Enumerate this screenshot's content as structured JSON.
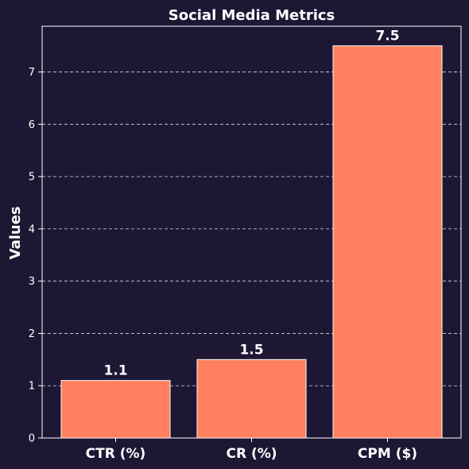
{
  "colors": {
    "background": "#1e1734",
    "bar_fill": "#ff7f5e",
    "bar_edge": "#ffffff",
    "grid": "#d8d8e0",
    "text": "#ffffff"
  },
  "chart_data": {
    "type": "bar",
    "title": "Social Media Metrics",
    "xlabel": "",
    "ylabel": "Values",
    "categories": [
      "CTR (%)",
      "CR (%)",
      "CPM ($)"
    ],
    "values": [
      1.1,
      1.5,
      7.5
    ],
    "value_labels": [
      "1.1",
      "1.5",
      "7.5"
    ],
    "ylim": [
      0,
      7.875
    ],
    "yticks": [
      0,
      1,
      2,
      3,
      4,
      5,
      6,
      7
    ],
    "grid": "y-dashed",
    "legend": "none"
  }
}
